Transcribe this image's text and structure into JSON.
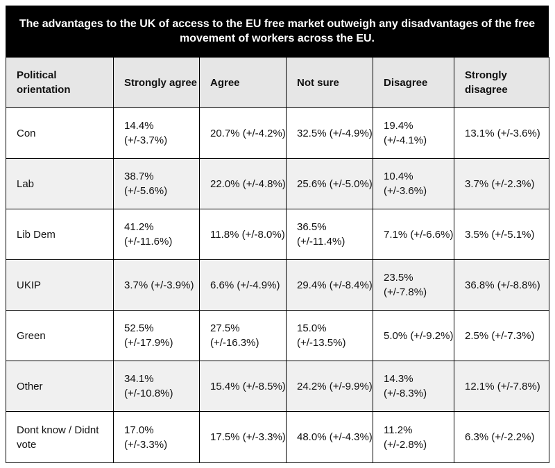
{
  "title": "The advantages to the UK of access to the EU free market outweigh any disadvantages of the free movement of workers across the EU.",
  "columns": [
    "Political orientation",
    "Strongly agree",
    "Agree",
    "Not sure",
    "Disagree",
    "Strongly disagree"
  ],
  "rows": [
    {
      "group": "Con",
      "cells": [
        "14.4% (+/-3.7%)",
        "20.7% (+/-4.2%)",
        "32.5% (+/-4.9%)",
        "19.4% (+/-4.1%)",
        "13.1% (+/-3.6%)"
      ]
    },
    {
      "group": "Lab",
      "cells": [
        "38.7% (+/-5.6%)",
        "22.0% (+/-4.8%)",
        "25.6% (+/-5.0%)",
        "10.4% (+/-3.6%)",
        "3.7% (+/-2.3%)"
      ]
    },
    {
      "group": "Lib Dem",
      "cells": [
        "41.2% (+/-11.6%)",
        "11.8% (+/-8.0%)",
        "36.5% (+/-11.4%)",
        "7.1% (+/-6.6%)",
        "3.5% (+/-5.1%)"
      ]
    },
    {
      "group": "UKIP",
      "cells": [
        "3.7% (+/-3.9%)",
        "6.6% (+/-4.9%)",
        "29.4% (+/-8.4%)",
        "23.5% (+/-7.8%)",
        "36.8% (+/-8.8%)"
      ]
    },
    {
      "group": "Green",
      "cells": [
        "52.5% (+/-17.9%)",
        "27.5% (+/-16.3%)",
        "15.0% (+/-13.5%)",
        "5.0% (+/-9.2%)",
        "2.5% (+/-7.3%)"
      ]
    },
    {
      "group": "Other",
      "cells": [
        "34.1% (+/-10.8%)",
        "15.4% (+/-8.5%)",
        "24.2% (+/-9.9%)",
        "14.3% (+/-8.3%)",
        "12.1% (+/-7.8%)"
      ]
    },
    {
      "group": "Dont know / Didnt vote",
      "cells": [
        "17.0% (+/-3.3%)",
        "17.5% (+/-3.3%)",
        "48.0% (+/-4.3%)",
        "11.2% (+/-2.8%)",
        "6.3% (+/-2.2%)"
      ]
    }
  ]
}
